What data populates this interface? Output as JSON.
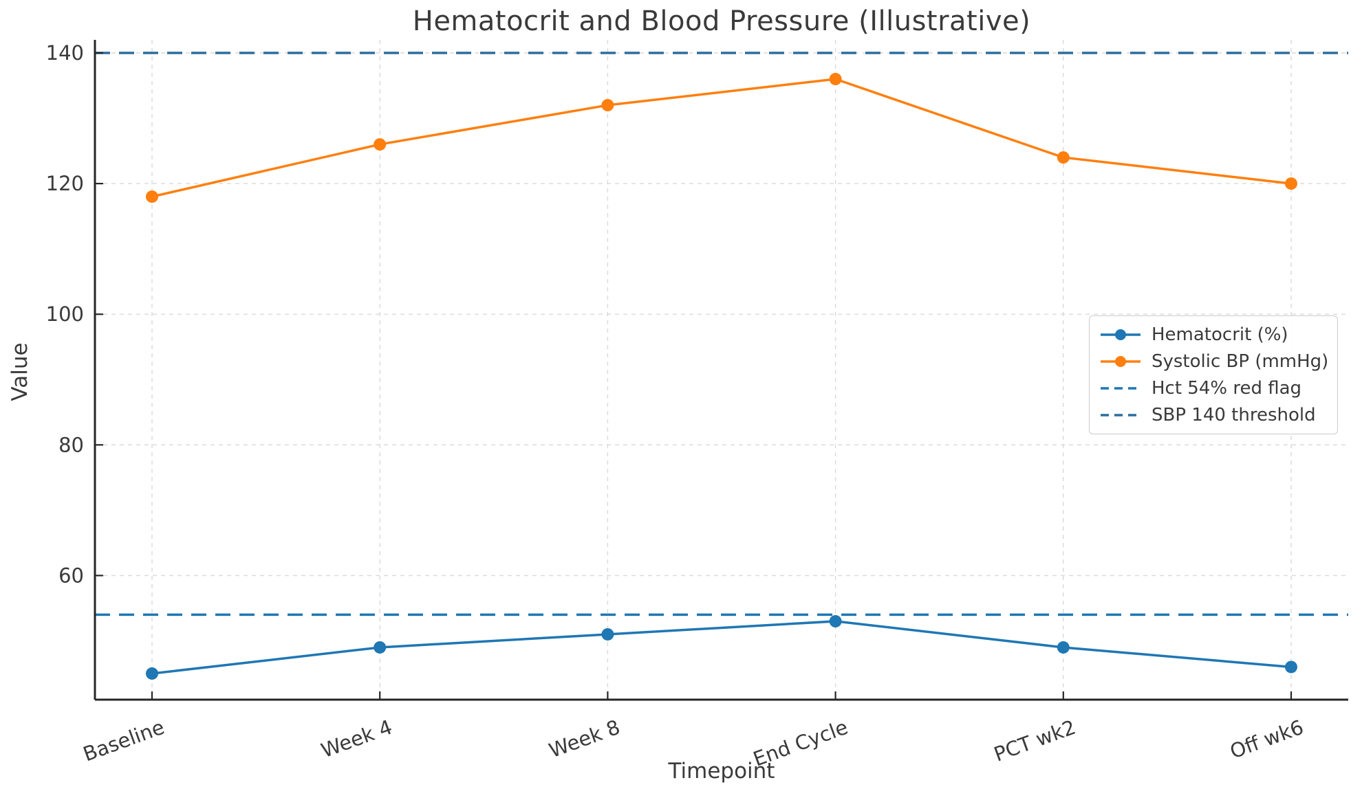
{
  "chart_data": {
    "type": "line",
    "title": "Hematocrit and Blood Pressure (Illustrative)",
    "xlabel": "Timepoint",
    "ylabel": "Value",
    "categories": [
      "Baseline",
      "Week 4",
      "Week 8",
      "End Cycle",
      "PCT wk2",
      "Off wk6"
    ],
    "series": [
      {
        "name": "Hematocrit (%)",
        "color": "#1f77b4",
        "style": "solid",
        "marker": "circle",
        "values": [
          45,
          49,
          51,
          53,
          49,
          46
        ]
      },
      {
        "name": "Systolic BP (mmHg)",
        "color": "#ff7f0e",
        "style": "solid",
        "marker": "circle",
        "values": [
          118,
          126,
          132,
          136,
          124,
          120
        ]
      }
    ],
    "thresholds": [
      {
        "name": "Hct 54% red flag",
        "value": 54,
        "color": "#1f77b4",
        "style": "dashed"
      },
      {
        "name": "SBP 140 threshold",
        "value": 140,
        "color": "#2d6d9e",
        "style": "dashed"
      }
    ],
    "yticks": [
      60,
      80,
      100,
      120,
      140
    ],
    "ylim": [
      41,
      142
    ],
    "grid": true,
    "legend_position": "center right",
    "text_color": "#3a3a3a",
    "grid_color": "#d9d9d9",
    "background_color": "#ffffff"
  }
}
